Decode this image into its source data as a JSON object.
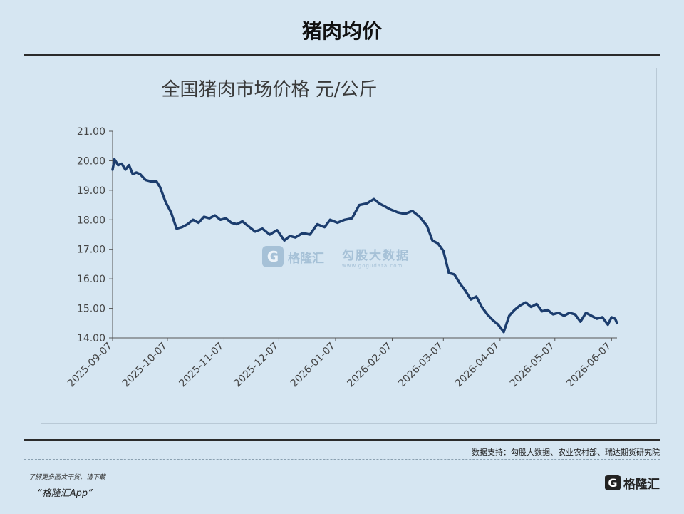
{
  "header": {
    "title": "猪肉均价"
  },
  "chart_data": {
    "type": "line",
    "title": "全国猪肉市场价格  元/公斤",
    "xlabel": "",
    "ylabel": "",
    "ylim": [
      14.0,
      21.0
    ],
    "y_ticks": [
      "21.00",
      "20.00",
      "19.00",
      "18.00",
      "17.00",
      "16.00",
      "15.00",
      "14.00"
    ],
    "x_ticks": [
      "2025-09-07",
      "2025-10-07",
      "2025-11-07",
      "2025-12-07",
      "2026-01-07",
      "2026-02-07",
      "2026-03-07",
      "2026-04-07",
      "2026-05-07",
      "2026-06-07"
    ],
    "x_range": [
      "2025-09-07",
      "2026-06-10"
    ],
    "grid": false,
    "legend": "none",
    "series": [
      {
        "color": "#1c3d6e",
        "x": [
          "2025-09-07",
          "2025-09-08",
          "2025-09-10",
          "2025-09-12",
          "2025-09-14",
          "2025-09-16",
          "2025-09-18",
          "2025-09-20",
          "2025-09-22",
          "2025-09-25",
          "2025-09-28",
          "2025-10-01",
          "2025-10-03",
          "2025-10-06",
          "2025-10-09",
          "2025-10-12",
          "2025-10-15",
          "2025-10-18",
          "2025-10-21",
          "2025-10-24",
          "2025-10-27",
          "2025-10-30",
          "2025-11-02",
          "2025-11-05",
          "2025-11-08",
          "2025-11-11",
          "2025-11-14",
          "2025-11-17",
          "2025-11-20",
          "2025-11-24",
          "2025-11-28",
          "2025-12-02",
          "2025-12-06",
          "2025-12-10",
          "2025-12-13",
          "2025-12-16",
          "2025-12-20",
          "2025-12-24",
          "2025-12-28",
          "2026-01-01",
          "2026-01-04",
          "2026-01-08",
          "2026-01-12",
          "2026-01-16",
          "2026-01-20",
          "2026-01-24",
          "2026-01-28",
          "2026-01-31",
          "2026-02-03",
          "2026-02-06",
          "2026-02-10",
          "2026-02-14",
          "2026-02-18",
          "2026-02-22",
          "2026-02-26",
          "2026-03-01",
          "2026-03-04",
          "2026-03-07",
          "2026-03-10",
          "2026-03-13",
          "2026-03-16",
          "2026-03-19",
          "2026-03-22",
          "2026-03-25",
          "2026-03-28",
          "2026-03-31",
          "2026-04-03",
          "2026-04-06",
          "2026-04-09",
          "2026-04-12",
          "2026-04-15",
          "2026-04-18",
          "2026-04-21",
          "2026-04-24",
          "2026-04-27",
          "2026-04-30",
          "2026-05-03",
          "2026-05-06",
          "2026-05-09",
          "2026-05-12",
          "2026-05-15",
          "2026-05-18",
          "2026-05-21",
          "2026-05-24",
          "2026-05-27",
          "2026-05-30",
          "2026-06-02",
          "2026-06-05",
          "2026-06-07",
          "2026-06-09",
          "2026-06-10"
        ],
        "values": [
          19.7,
          20.05,
          19.85,
          19.9,
          19.7,
          19.85,
          19.55,
          19.6,
          19.55,
          19.35,
          19.3,
          19.3,
          19.1,
          18.6,
          18.25,
          17.7,
          17.75,
          17.85,
          18.0,
          17.9,
          18.1,
          18.05,
          18.15,
          18.0,
          18.05,
          17.9,
          17.85,
          17.95,
          17.8,
          17.6,
          17.7,
          17.5,
          17.65,
          17.3,
          17.45,
          17.4,
          17.55,
          17.5,
          17.85,
          17.75,
          18.0,
          17.9,
          18.0,
          18.05,
          18.5,
          18.55,
          18.7,
          18.55,
          18.45,
          18.35,
          18.25,
          18.2,
          18.3,
          18.1,
          17.8,
          17.3,
          17.2,
          16.95,
          16.2,
          16.15,
          15.85,
          15.6,
          15.3,
          15.4,
          15.05,
          14.8,
          14.6,
          14.45,
          14.2,
          14.75,
          14.95,
          15.1,
          15.2,
          15.05,
          15.15,
          14.9,
          14.95,
          14.8,
          14.85,
          14.75,
          14.85,
          14.8,
          14.55,
          14.85,
          14.75,
          14.65,
          14.7,
          14.45,
          14.7,
          14.65,
          14.5
        ]
      }
    ]
  },
  "watermark": {
    "logo_letter": "G",
    "name": "格隆汇",
    "product": "勾股大数据",
    "url": "www.gogudata.com"
  },
  "footer": {
    "source": "数据支持：勾股大数据、农业农村部、瑞达期货研究院",
    "hint": "了解更多图文干货，请下载",
    "app": "“格隆汇App”",
    "brand_letter": "G",
    "brand_name": "格隆汇"
  }
}
